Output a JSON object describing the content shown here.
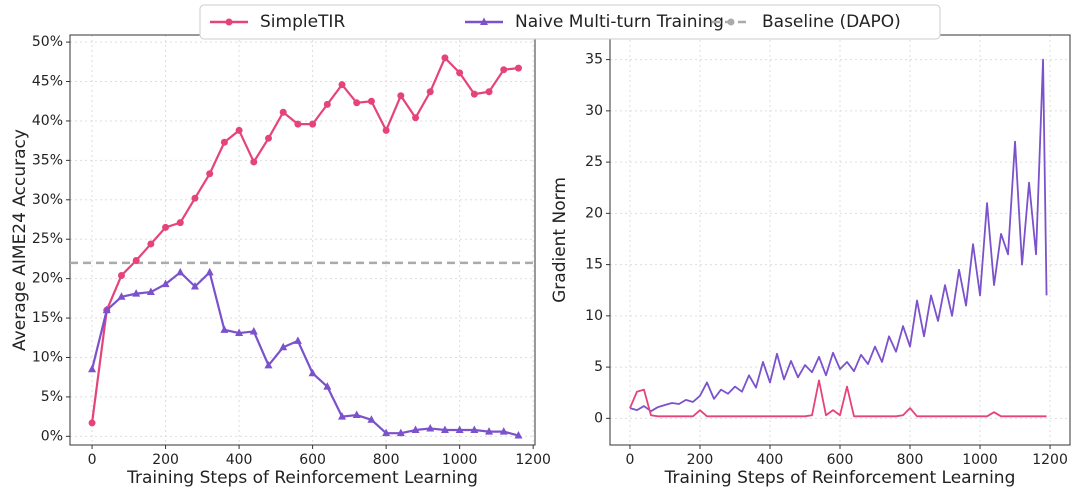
{
  "chart_data": [
    {
      "type": "line",
      "x_label": "Training Steps of Reinforcement Learning",
      "y_label": "Average AIME24 Accuracy",
      "xlim": [
        -60,
        1205
      ],
      "ylim": [
        -1.1,
        50.9
      ],
      "xticks": [
        0,
        200,
        400,
        600,
        800,
        1000,
        1200
      ],
      "yticks": [
        {
          "value": 0,
          "label": "0%"
        },
        {
          "value": 5,
          "label": "5%"
        },
        {
          "value": 10,
          "label": "10%"
        },
        {
          "value": 15,
          "label": "15%"
        },
        {
          "value": 20,
          "label": "20%"
        },
        {
          "value": 25,
          "label": "25%"
        },
        {
          "value": 30,
          "label": "30%"
        },
        {
          "value": 35,
          "label": "35%"
        },
        {
          "value": 40,
          "label": "40%"
        },
        {
          "value": 45,
          "label": "45%"
        },
        {
          "value": 50,
          "label": "50%"
        }
      ],
      "grid": true,
      "x": [
        0,
        40,
        80,
        120,
        160,
        200,
        240,
        280,
        320,
        360,
        400,
        440,
        480,
        520,
        560,
        600,
        640,
        680,
        720,
        760,
        800,
        840,
        880,
        920,
        960,
        1000,
        1040,
        1080,
        1120,
        1160
      ],
      "series": [
        {
          "name": "SimpleTIR",
          "color": "#e5447b",
          "marker": "circle",
          "values": [
            1.7,
            16,
            20.4,
            22.3,
            24.4,
            26.5,
            27.1,
            30.2,
            33.3,
            37.3,
            38.8,
            34.8,
            37.8,
            41.1,
            39.6,
            39.6,
            42.1,
            44.6,
            42.3,
            42.5,
            38.8,
            43.2,
            40.4,
            43.7,
            48.0,
            46.1,
            43.4,
            43.7,
            46.5,
            46.7
          ]
        },
        {
          "name": "Naive Multi-turn Training",
          "color": "#7b52cc",
          "marker": "triangle",
          "values": [
            8.5,
            16,
            17.7,
            18.1,
            18.3,
            19.3,
            20.8,
            19.0,
            20.8,
            13.5,
            13.1,
            13.3,
            9.0,
            11.3,
            12.1,
            8.0,
            6.3,
            2.5,
            2.7,
            2.1,
            0.4,
            0.4,
            0.8,
            1.0,
            0.8,
            0.8,
            0.8,
            0.6,
            0.6,
            0.1
          ]
        }
      ],
      "reference_lines": [
        {
          "name": "Baseline (DAPO)",
          "value": 22,
          "color": "#aaaaaa"
        }
      ]
    },
    {
      "type": "line",
      "x_label": "Training Steps of Reinforcement Learning",
      "y_label": "Gradient Norm",
      "xlim": [
        -57,
        1257
      ],
      "ylim": [
        -2.6,
        37.4
      ],
      "xticks": [
        0,
        200,
        400,
        600,
        800,
        1000,
        1200
      ],
      "yticks": [
        0,
        5,
        10,
        15,
        20,
        25,
        30,
        35
      ],
      "grid": true,
      "x": [
        0,
        20,
        40,
        60,
        80,
        100,
        120,
        140,
        160,
        180,
        200,
        220,
        240,
        260,
        280,
        300,
        320,
        340,
        360,
        380,
        400,
        420,
        440,
        460,
        480,
        500,
        520,
        540,
        560,
        580,
        600,
        620,
        640,
        660,
        680,
        700,
        720,
        740,
        760,
        780,
        800,
        820,
        840,
        860,
        880,
        900,
        920,
        940,
        960,
        980,
        1000,
        1020,
        1040,
        1060,
        1080,
        1100,
        1120,
        1140,
        1160,
        1180,
        1190
      ],
      "series": [
        {
          "name": "Naive Multi-turn Training",
          "color": "#7b52cc",
          "values": [
            1.0,
            0.8,
            1.2,
            0.7,
            1.1,
            1.3,
            1.5,
            1.4,
            1.8,
            1.6,
            2.2,
            3.5,
            1.9,
            2.8,
            2.4,
            3.1,
            2.6,
            4.2,
            3.0,
            5.5,
            3.5,
            6.3,
            3.8,
            5.6,
            4.0,
            5.2,
            4.5,
            6.0,
            4.2,
            6.4,
            4.8,
            5.5,
            4.6,
            6.2,
            5.3,
            7.0,
            5.5,
            8.0,
            6.5,
            9.0,
            7.0,
            11.5,
            8.0,
            12.0,
            9.5,
            13.0,
            10.0,
            14.5,
            11.0,
            17.0,
            12.0,
            21.0,
            13.0,
            18.0,
            16.0,
            27.0,
            15.0,
            23.0,
            16.0,
            35.0,
            12.0
          ]
        },
        {
          "name": "SimpleTIR",
          "color": "#e5447b",
          "values": [
            1.0,
            2.6,
            2.8,
            0.3,
            0.2,
            0.2,
            0.2,
            0.2,
            0.2,
            0.2,
            0.8,
            0.2,
            0.2,
            0.2,
            0.2,
            0.2,
            0.2,
            0.2,
            0.2,
            0.2,
            0.2,
            0.2,
            0.2,
            0.2,
            0.2,
            0.2,
            0.3,
            3.7,
            0.3,
            0.8,
            0.3,
            3.1,
            0.2,
            0.2,
            0.2,
            0.2,
            0.2,
            0.2,
            0.2,
            0.3,
            1.0,
            0.2,
            0.2,
            0.2,
            0.2,
            0.2,
            0.2,
            0.2,
            0.2,
            0.2,
            0.2,
            0.2,
            0.6,
            0.2,
            0.2,
            0.2,
            0.2,
            0.2,
            0.2,
            0.2,
            0.2
          ]
        }
      ]
    }
  ]
}
